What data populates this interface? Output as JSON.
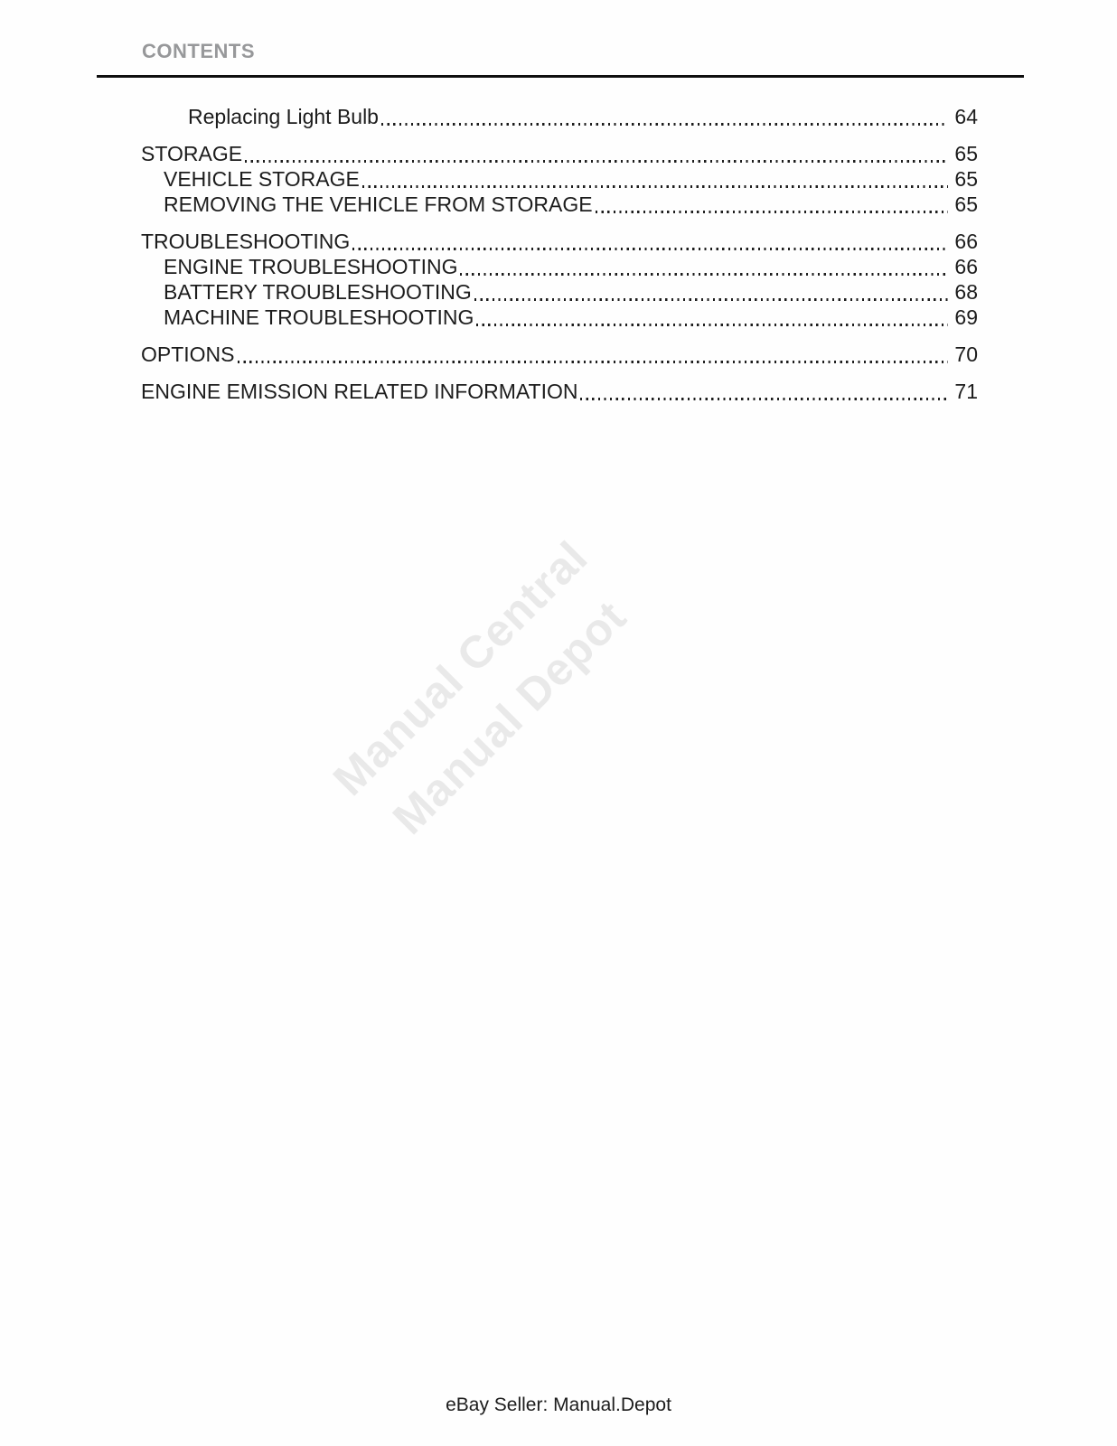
{
  "header": {
    "title": "CONTENTS"
  },
  "toc": {
    "entries": [
      {
        "label": "Replacing Light Bulb",
        "page": "64",
        "level": 2,
        "gap": false
      },
      {
        "label": "STORAGE",
        "page": "65",
        "level": 0,
        "gap": true
      },
      {
        "label": "VEHICLE STORAGE",
        "page": "65",
        "level": 1,
        "gap": false
      },
      {
        "label": "REMOVING THE VEHICLE FROM STORAGE",
        "page": "65",
        "level": 1,
        "gap": false
      },
      {
        "label": "TROUBLESHOOTING",
        "page": "66",
        "level": 0,
        "gap": true
      },
      {
        "label": "ENGINE TROUBLESHOOTING",
        "page": "66",
        "level": 1,
        "gap": false
      },
      {
        "label": "BATTERY TROUBLESHOOTING",
        "page": "68",
        "level": 1,
        "gap": false
      },
      {
        "label": "MACHINE TROUBLESHOOTING",
        "page": "69",
        "level": 1,
        "gap": false
      },
      {
        "label": "OPTIONS",
        "page": "70",
        "level": 0,
        "gap": true
      },
      {
        "label": "ENGINE EMISSION RELATED INFORMATION",
        "page": "71",
        "level": 0,
        "gap": true
      }
    ]
  },
  "watermark": {
    "line1": "Manual Central",
    "line2": "Manual Depot",
    "color": "#e9e9e9"
  },
  "footer": {
    "text": "eBay Seller: Manual.Depot"
  }
}
